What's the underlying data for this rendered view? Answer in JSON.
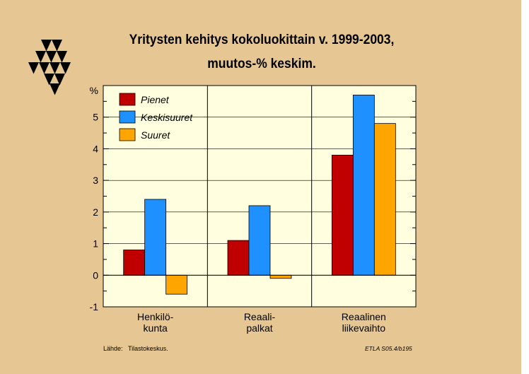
{
  "title": "Yritysten kehitys kokoluokittain v. 1999-2003,",
  "subtitle": "muutos-% keskim.",
  "source_label": "Lähde:",
  "source_value": "Tilastokeskus.",
  "code": "ETLA S05.4/b195",
  "colors": {
    "background": "#e6c793",
    "pienet": "#c00000",
    "keskisuuret": "#1e90ff",
    "suuret": "#ffa500"
  },
  "logo_icon": "etla-triangles-logo",
  "chart_data": {
    "type": "bar",
    "title": "Yritysten kehitys kokoluokittain v. 1999-2003, muutos-% keskim.",
    "ylabel": "%",
    "ylim": [
      -1,
      6
    ],
    "yticks": [
      "-1",
      "0",
      "1",
      "2",
      "3",
      "4",
      "5"
    ],
    "grid": true,
    "legend_position": "top-left",
    "categories": [
      [
        "Henkilö-",
        "kunta"
      ],
      [
        "Reaali-",
        "palkat"
      ],
      [
        "Reaalinen",
        "liikevaihto"
      ]
    ],
    "series": [
      {
        "name": "Pienet",
        "color": "#c00000",
        "values": [
          0.8,
          1.1,
          3.8
        ]
      },
      {
        "name": "Keskisuuret",
        "color": "#1e90ff",
        "values": [
          2.4,
          2.2,
          5.7
        ]
      },
      {
        "name": "Suuret",
        "color": "#ffa500",
        "values": [
          -0.6,
          -0.1,
          4.8
        ]
      }
    ]
  }
}
